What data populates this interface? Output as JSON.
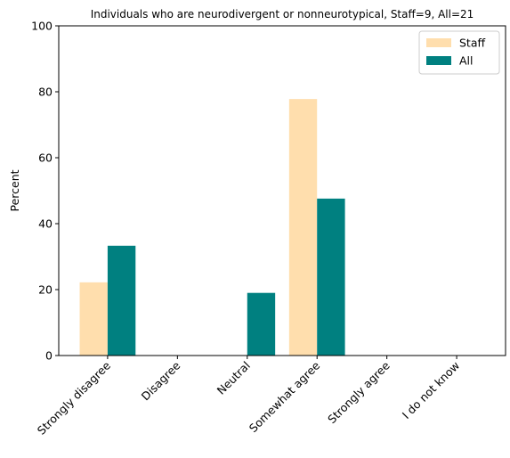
{
  "chart_data": {
    "type": "bar",
    "title": "Individuals who are neurodivergent or nonneurotypical, Staff=9, All=21",
    "xlabel": "",
    "ylabel": "Percent",
    "ylim": [
      0,
      100
    ],
    "yticks": [
      0,
      20,
      40,
      60,
      80,
      100
    ],
    "categories": [
      "Strongly disagree",
      "Disagree",
      "Neutral",
      "Somewhat agree",
      "Strongly agree",
      "I do not know"
    ],
    "series": [
      {
        "name": "Staff",
        "color": "#FFDEAD",
        "values": [
          22.2,
          0,
          0,
          77.8,
          0,
          0
        ]
      },
      {
        "name": "All",
        "color": "#008080",
        "values": [
          33.3,
          0,
          19.0,
          47.6,
          0,
          0
        ]
      }
    ],
    "legend": "top-right",
    "grid": false
  }
}
